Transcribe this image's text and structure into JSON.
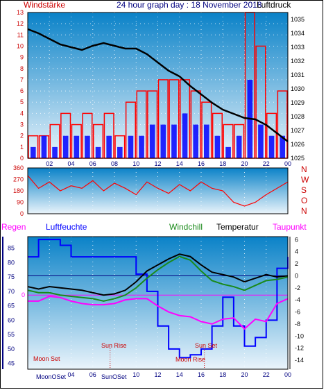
{
  "header": {
    "left": "Windstärke",
    "center": "24 hour graph day : 18 November 2018",
    "right": "Luftdruck"
  },
  "row_labels": {
    "regen": "Regen",
    "luftfeuchte": "Luftfeuchte",
    "windchill": "Windchill",
    "temperatur": "Temperatur",
    "taupunkt": "Taupunkt"
  },
  "compass": [
    "N",
    "W",
    "S",
    "O",
    "N"
  ],
  "annotations": {
    "moon_set": "Moon Set",
    "sun_rise": "Sun Rise",
    "sun_set": "Sun Set",
    "moon_rise": "Moon Rise",
    "moon_overlap": "MoonOSet",
    "sun_overlap": "SunOSet"
  },
  "colors": {
    "bg_top": "#0a82c8",
    "bg_bottom": "#e8f2fa",
    "wind_gust": "#ff0000",
    "wind_avg": "#0000ff",
    "pressure": "#000000",
    "temperature": "#000000",
    "windchill": "#1a8a1a",
    "dewpoint": "#ff00ff",
    "humidity": "#0000ff",
    "axis_red": "#cc0000",
    "axis_blue": "#000080"
  },
  "chart_data": [
    {
      "type": "bar",
      "name": "wind",
      "x_ticks": [
        "02",
        "04",
        "06",
        "08",
        "10",
        "12",
        "14",
        "16",
        "18",
        "20",
        "22",
        "00"
      ],
      "y_left_ticks": [
        "0",
        "1",
        "2",
        "3",
        "4",
        "5",
        "6",
        "7",
        "8",
        "9",
        "10",
        "11",
        "12",
        "13"
      ],
      "y_right_ticks": [
        "1025",
        "1026",
        "1027",
        "1028",
        "1029",
        "1030",
        "1031",
        "1032",
        "1033",
        "1034",
        "1035"
      ],
      "ylim_left": [
        0,
        13
      ],
      "ylim_right": [
        1025,
        1035.5
      ],
      "series": [
        {
          "name": "Windstärke",
          "hours": [
            0.5,
            1.5,
            2.5,
            3.5,
            4.5,
            5.5,
            6.5,
            7.5,
            8.5,
            9.5,
            10.5,
            11.5,
            12.5,
            13.5,
            14.5,
            15.5,
            16.5,
            17.5,
            18.5,
            19.5,
            20.5,
            21.5,
            22.5,
            23.5
          ],
          "values": [
            2,
            2,
            3,
            4,
            3,
            4,
            3,
            4,
            2,
            5,
            6,
            6,
            7,
            7,
            7,
            6,
            5,
            4,
            3,
            3,
            13,
            10,
            4,
            6
          ]
        },
        {
          "name": "Wind avg",
          "hours": [
            0.5,
            1.5,
            2.5,
            3.5,
            4.5,
            5.5,
            6.5,
            7.5,
            8.5,
            9.5,
            10.5,
            11.5,
            12.5,
            13.5,
            14.5,
            15.5,
            16.5,
            17.5,
            18.5,
            19.5,
            20.5,
            21.5,
            22.5,
            23.5
          ],
          "values": [
            1,
            2,
            1,
            2,
            2,
            2,
            1,
            2,
            1,
            2,
            2,
            3,
            3,
            3,
            4,
            3,
            3,
            2,
            1,
            2,
            7,
            3,
            2,
            2
          ]
        },
        {
          "name": "Luftdruck",
          "hours": [
            0,
            1,
            2,
            3,
            4,
            5,
            6,
            7,
            8,
            9,
            10,
            11,
            12,
            13,
            14,
            15,
            16,
            17,
            18,
            19,
            20,
            21,
            22,
            23,
            24
          ],
          "values": [
            1034.3,
            1034.0,
            1033.6,
            1033.2,
            1033.0,
            1032.8,
            1033.1,
            1033.3,
            1033.1,
            1032.9,
            1032.9,
            1032.5,
            1031.9,
            1031.3,
            1030.9,
            1030.2,
            1029.6,
            1029.0,
            1028.5,
            1028.2,
            1027.9,
            1027.8,
            1027.4,
            1026.8,
            1026.2
          ]
        }
      ]
    },
    {
      "type": "line",
      "name": "wind_direction",
      "y_ticks": [
        "0",
        "90",
        "180",
        "270",
        "360"
      ],
      "ylim": [
        0,
        360
      ],
      "series": [
        {
          "name": "direction",
          "hours": [
            0,
            1,
            2,
            3,
            4,
            5,
            6,
            7,
            8,
            9,
            10,
            11,
            12,
            13,
            14,
            15,
            16,
            17,
            18,
            19,
            20,
            21,
            22,
            23,
            24
          ],
          "values": [
            300,
            200,
            250,
            180,
            220,
            200,
            260,
            180,
            240,
            200,
            150,
            250,
            200,
            160,
            230,
            180,
            250,
            200,
            180,
            90,
            60,
            90,
            150,
            200,
            250
          ]
        }
      ]
    },
    {
      "type": "line",
      "name": "temperature_humidity",
      "y_left_ticks": [
        "45",
        "50",
        "55",
        "60",
        "65",
        "70",
        "75",
        "80",
        "85"
      ],
      "y_right_ticks": [
        "6",
        "4",
        "2",
        "0",
        "-2",
        "-4",
        "-6",
        "-8",
        "-10",
        "-12",
        "-14"
      ],
      "ylim_left": [
        43,
        89
      ],
      "ylim_right": [
        -15.5,
        6.5
      ],
      "zero_marker_left": "0",
      "series": [
        {
          "name": "Luftfeuchte",
          "hours": [
            0,
            1,
            2,
            3,
            4,
            5,
            6,
            7,
            8,
            9,
            10,
            11,
            12,
            13,
            14,
            15,
            16,
            17,
            18,
            19,
            20,
            21,
            22,
            23,
            24
          ],
          "values": [
            82,
            88,
            88,
            86,
            82,
            82,
            82,
            82,
            82,
            82,
            76,
            70,
            58,
            50,
            47,
            48,
            50,
            58,
            68,
            58,
            51,
            54,
            60,
            78,
            82
          ]
        },
        {
          "name": "Temperatur",
          "hours": [
            0,
            1,
            2,
            3,
            4,
            5,
            6,
            7,
            8,
            9,
            10,
            11,
            12,
            13,
            14,
            15,
            16,
            17,
            18,
            19,
            20,
            21,
            22,
            23,
            24
          ],
          "values": [
            -1.8,
            -2.2,
            -1.8,
            -2.0,
            -2.2,
            -2.4,
            -2.8,
            -3.2,
            -3.0,
            -2.4,
            -1.0,
            0.8,
            1.8,
            2.8,
            3.6,
            3.2,
            1.8,
            0.6,
            0.2,
            -0.2,
            -1.0,
            -0.4,
            0.2,
            -0.2,
            0.0
          ]
        },
        {
          "name": "Windchill",
          "hours": [
            0,
            1,
            2,
            3,
            4,
            5,
            6,
            7,
            8,
            9,
            10,
            11,
            12,
            13,
            14,
            15,
            16,
            17,
            18,
            19,
            20,
            21,
            22,
            23,
            24
          ],
          "values": [
            -2.4,
            -2.8,
            -2.8,
            -3.2,
            -3.4,
            -3.6,
            -3.8,
            -4.2,
            -3.8,
            -3.2,
            -2.0,
            -0.4,
            1.0,
            2.2,
            3.2,
            2.6,
            0.8,
            -0.8,
            -1.4,
            -1.8,
            -2.4,
            -1.6,
            -0.8,
            -0.6,
            -0.2
          ]
        },
        {
          "name": "Taupunkt",
          "hours": [
            0,
            1,
            2,
            3,
            4,
            5,
            6,
            7,
            8,
            9,
            10,
            11,
            12,
            13,
            14,
            15,
            16,
            17,
            18,
            19,
            20,
            21,
            22,
            23,
            24
          ],
          "values": [
            -4.2,
            -4.2,
            -3.4,
            -3.6,
            -4.2,
            -4.6,
            -4.8,
            -4.8,
            -4.6,
            -4.0,
            -3.8,
            -3.8,
            -5.0,
            -6.0,
            -6.6,
            -6.8,
            -7.6,
            -8.0,
            -7.2,
            -7.0,
            -8.8,
            -7.2,
            -7.6,
            -4.6,
            -3.8
          ]
        }
      ]
    }
  ]
}
